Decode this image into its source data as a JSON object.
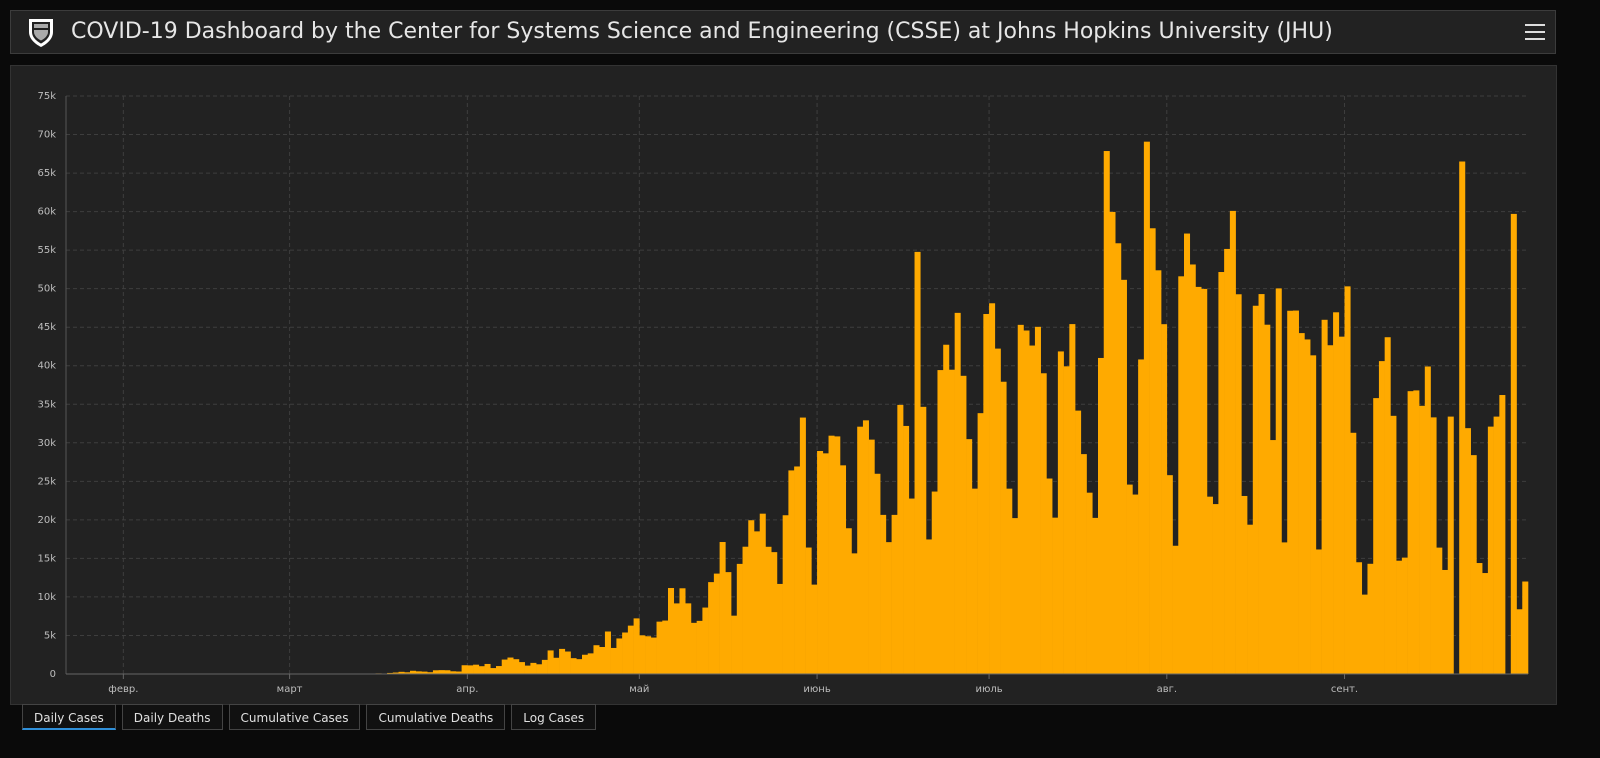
{
  "header": {
    "title": "COVID-19 Dashboard by the Center for Systems Science and Engineering (CSSE) at Johns Hopkins University (JHU)"
  },
  "chart_data": {
    "type": "bar",
    "color": "#ffaa00",
    "grid": true,
    "ylim": [
      0,
      75000
    ],
    "yticks": [
      0,
      {
        "value": 5000,
        "label": "5k"
      },
      {
        "value": 10000,
        "label": "10k"
      },
      {
        "value": 15000,
        "label": "15k"
      },
      {
        "value": 20000,
        "label": "20k"
      },
      {
        "value": 25000,
        "label": "25k"
      },
      {
        "value": 30000,
        "label": "30k"
      },
      {
        "value": 35000,
        "label": "35k"
      },
      {
        "value": 40000,
        "label": "40k"
      },
      {
        "value": 45000,
        "label": "45k"
      },
      {
        "value": 50000,
        "label": "50k"
      },
      {
        "value": 55000,
        "label": "55k"
      },
      {
        "value": 60000,
        "label": "60k"
      },
      {
        "value": 65000,
        "label": "65k"
      },
      {
        "value": 70000,
        "label": "70k"
      },
      {
        "value": 75000,
        "label": "75k"
      }
    ],
    "categories": [
      null,
      null,
      null,
      null,
      null,
      null,
      null,
      null,
      null,
      null,
      "февр.",
      null,
      null,
      null,
      null,
      null,
      null,
      null,
      null,
      null,
      null,
      null,
      null,
      null,
      null,
      null,
      null,
      null,
      null,
      null,
      null,
      null,
      null,
      null,
      null,
      null,
      null,
      null,
      null,
      "март",
      null,
      null,
      null,
      null,
      null,
      null,
      null,
      null,
      null,
      null,
      null,
      null,
      null,
      null,
      null,
      null,
      null,
      null,
      null,
      null,
      null,
      null,
      null,
      null,
      null,
      null,
      null,
      null,
      null,
      null,
      "апр.",
      null,
      null,
      null,
      null,
      null,
      null,
      null,
      null,
      null,
      null,
      null,
      null,
      null,
      null,
      null,
      null,
      null,
      null,
      null,
      null,
      null,
      null,
      null,
      null,
      null,
      null,
      null,
      null,
      null,
      "май",
      null,
      null,
      null,
      null,
      null,
      null,
      null,
      null,
      null,
      null,
      null,
      null,
      null,
      null,
      null,
      null,
      null,
      null,
      null,
      null,
      null,
      null,
      null,
      null,
      null,
      null,
      null,
      null,
      null,
      null,
      "июнь",
      null,
      null,
      null,
      null,
      null,
      null,
      null,
      null,
      null,
      null,
      null,
      null,
      null,
      null,
      null,
      null,
      null,
      null,
      null,
      null,
      null,
      null,
      null,
      null,
      null,
      null,
      null,
      null,
      null,
      "июль",
      null,
      null,
      null,
      null,
      null,
      null,
      null,
      null,
      null,
      null,
      null,
      null,
      null,
      null,
      null,
      null,
      null,
      null,
      null,
      null,
      null,
      null,
      null,
      null,
      null,
      null,
      null,
      null,
      null,
      null,
      "авг.",
      null,
      null,
      null,
      null,
      null,
      null,
      null,
      null,
      null,
      null,
      null,
      null,
      null,
      null,
      null,
      null,
      null,
      null,
      null,
      null,
      null,
      null,
      null,
      null,
      null,
      null,
      null,
      null,
      null,
      null,
      "сент.",
      null,
      null,
      null,
      null,
      null,
      null,
      null,
      null,
      null,
      null,
      null,
      null,
      null,
      null,
      null,
      null,
      null,
      null,
      null,
      null,
      null,
      null,
      null,
      null,
      null,
      null,
      null,
      null,
      null,
      null,
      null
    ],
    "values": [
      0,
      0,
      0,
      0,
      0,
      0,
      0,
      0,
      0,
      0,
      0,
      0,
      0,
      0,
      0,
      0,
      0,
      0,
      0,
      0,
      0,
      0,
      0,
      0,
      0,
      0,
      0,
      0,
      0,
      0,
      0,
      0,
      0,
      0,
      0,
      1,
      0,
      0,
      0,
      0,
      1,
      0,
      0,
      0,
      5,
      5,
      6,
      5,
      0,
      9,
      18,
      25,
      21,
      23,
      79,
      57,
      137,
      193,
      283,
      224,
      418,
      345,
      310,
      232,
      482,
      502,
      487,
      352,
      323,
      1138,
      1119,
      1208,
      1012,
      1304,
      770,
      1031,
      1873,
      2136,
      1922,
      1546,
      1089,
      1442,
      1261,
      1832,
      3058,
      2105,
      3257,
      2917,
      2055,
      1927,
      2498,
      2678,
      3735,
      3503,
      5514,
      3379,
      4613,
      5385,
      6276,
      7218,
      5015,
      4898,
      4726,
      6794,
      6935,
      11156,
      9162,
      11121,
      9167,
      6638,
      6895,
      8620,
      11923,
      13028,
      17126,
      13220,
      7569,
      14288,
      16517,
      19951,
      18508,
      20803,
      16508,
      15813,
      11687,
      20599,
      26417,
      26928,
      33274,
      16409,
      11598,
      28936,
      28633,
      30925,
      30830,
      27075,
      18912,
      15654,
      32091,
      32913,
      30412,
      25982,
      20647,
      17110,
      20647,
      34918,
      32188,
      22765,
      54771,
      34666,
      17459,
      23674,
      39436,
      42725,
      39483,
      46860,
      38693,
      30476,
      24052,
      33846,
      46712,
      48105,
      42223,
      37923,
      24050,
      20229,
      45305,
      44571,
      42619,
      45048,
      39023,
      25364,
      20286,
      41857,
      39924,
      45403,
      34177,
      28532,
      23529,
      20257,
      41008,
      67860,
      59961,
      55891,
      51147,
      24578,
      23284,
      40816,
      69074,
      57837,
      52383,
      45392,
      25800,
      16641,
      51603,
      57152,
      53139,
      50230,
      49970,
      23010,
      22048,
      52160,
      55155,
      60091,
      49274,
      23101,
      19373,
      47784,
      49298,
      45323,
      30355,
      50032,
      17078,
      47134,
      47161,
      44235,
      43412,
      41350,
      16158,
      45961,
      42659,
      46934,
      43773,
      50300,
      31300,
      14500,
      10300,
      14300,
      35800,
      40600,
      43700,
      33500,
      14700,
      15100,
      36700,
      36800,
      34800,
      39900,
      33300,
      16400,
      13500,
      33400,
      0,
      66500,
      31900,
      28400,
      14400,
      13100,
      32100,
      33400,
      36200,
      0,
      59700,
      8400,
      12000
    ]
  },
  "tabs": [
    "Daily Cases",
    "Daily Deaths",
    "Cumulative Cases",
    "Cumulative Deaths",
    "Log Cases"
  ]
}
